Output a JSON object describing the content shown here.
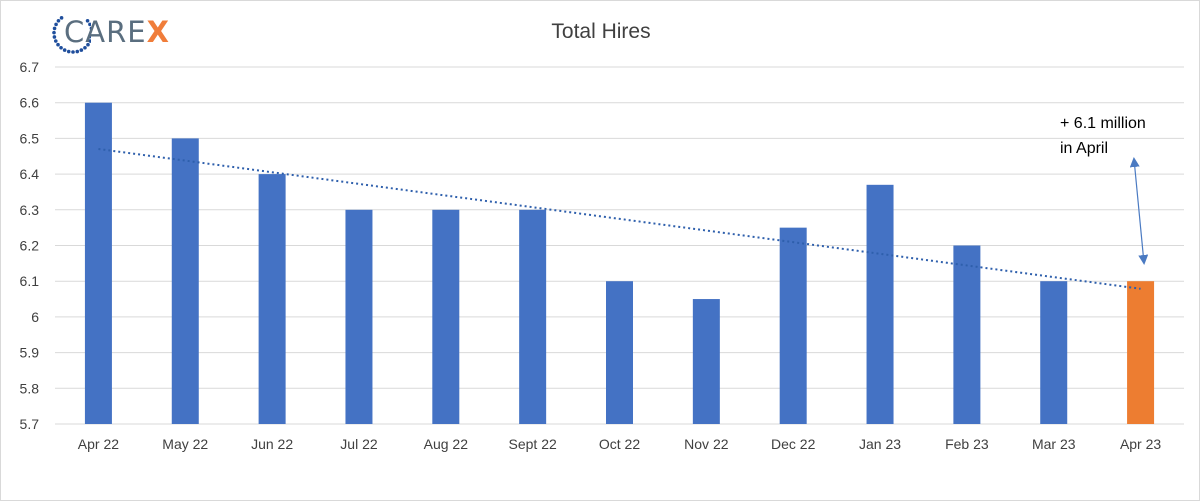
{
  "logo": {
    "brand_main": "CARE",
    "brand_accent": "X",
    "ring_color": "#1f4e9c",
    "text_color": "#5a6e7f",
    "accent_color": "#f07d3a"
  },
  "annotation": {
    "line1": "+ 6.1 million",
    "line2": "in April"
  },
  "chart_data": {
    "type": "bar",
    "title": "Total Hires",
    "xlabel": "",
    "ylabel": "",
    "categories": [
      "Apr 22",
      "May 22",
      "Jun 22",
      "Jul 22",
      "Aug 22",
      "Sept 22",
      "Oct 22",
      "Nov 22",
      "Dec 22",
      "Jan 23",
      "Feb 23",
      "Mar 23",
      "Apr 23"
    ],
    "values": [
      6.6,
      6.5,
      6.4,
      6.3,
      6.3,
      6.3,
      6.1,
      6.05,
      6.25,
      6.37,
      6.2,
      6.1,
      6.1
    ],
    "ylim": [
      5.7,
      6.7
    ],
    "yticks": [
      5.7,
      5.8,
      5.9,
      6,
      6.1,
      6.2,
      6.3,
      6.4,
      6.5,
      6.6,
      6.7
    ],
    "grid": true,
    "legend": "none",
    "bar_color": "#4472c4",
    "highlight_color": "#ed7d31",
    "highlight_category": "Apr 23",
    "trendline": {
      "type": "linear",
      "style": "dotted",
      "color": "#2e5fac"
    }
  }
}
